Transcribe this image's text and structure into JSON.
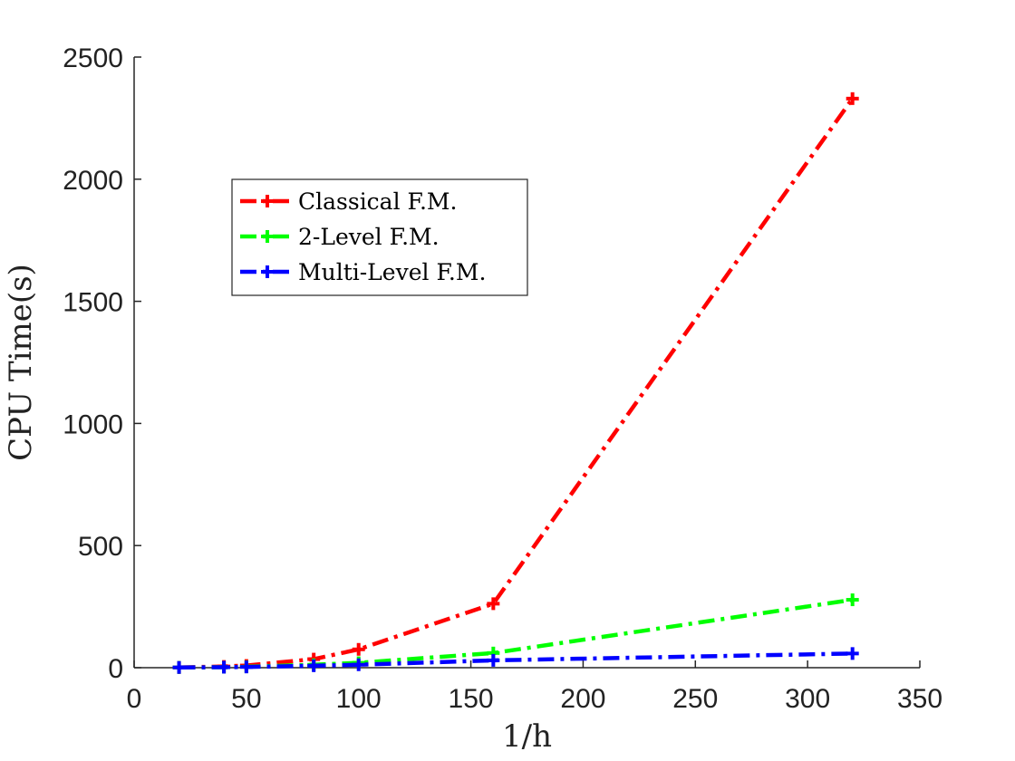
{
  "chart_data": {
    "type": "line",
    "title": "",
    "xlabel": "1/h",
    "ylabel": "CPU Time(s)",
    "xlim": [
      0,
      350
    ],
    "ylim": [
      0,
      2500
    ],
    "xticks": [
      0,
      50,
      100,
      150,
      200,
      250,
      300,
      350
    ],
    "yticks": [
      0,
      500,
      1000,
      1500,
      2000,
      2500
    ],
    "grid": false,
    "legend_position": "upper-left",
    "series": [
      {
        "name": "Classical F.M.",
        "color": "#ff0000",
        "x": [
          20,
          40,
          50,
          80,
          100,
          160,
          320
        ],
        "y": [
          1,
          5,
          9,
          35,
          75,
          262,
          2330
        ]
      },
      {
        "name": "2-Level F.M.",
        "color": "#00ff00",
        "x": [
          20,
          40,
          50,
          80,
          100,
          160,
          320
        ],
        "y": [
          1,
          2,
          4,
          12,
          20,
          60,
          278
        ]
      },
      {
        "name": "Multi-Level F.M.",
        "color": "#0000ff",
        "x": [
          20,
          40,
          50,
          80,
          100,
          160,
          320
        ],
        "y": [
          1,
          2,
          3,
          8,
          12,
          30,
          58
        ]
      }
    ]
  }
}
